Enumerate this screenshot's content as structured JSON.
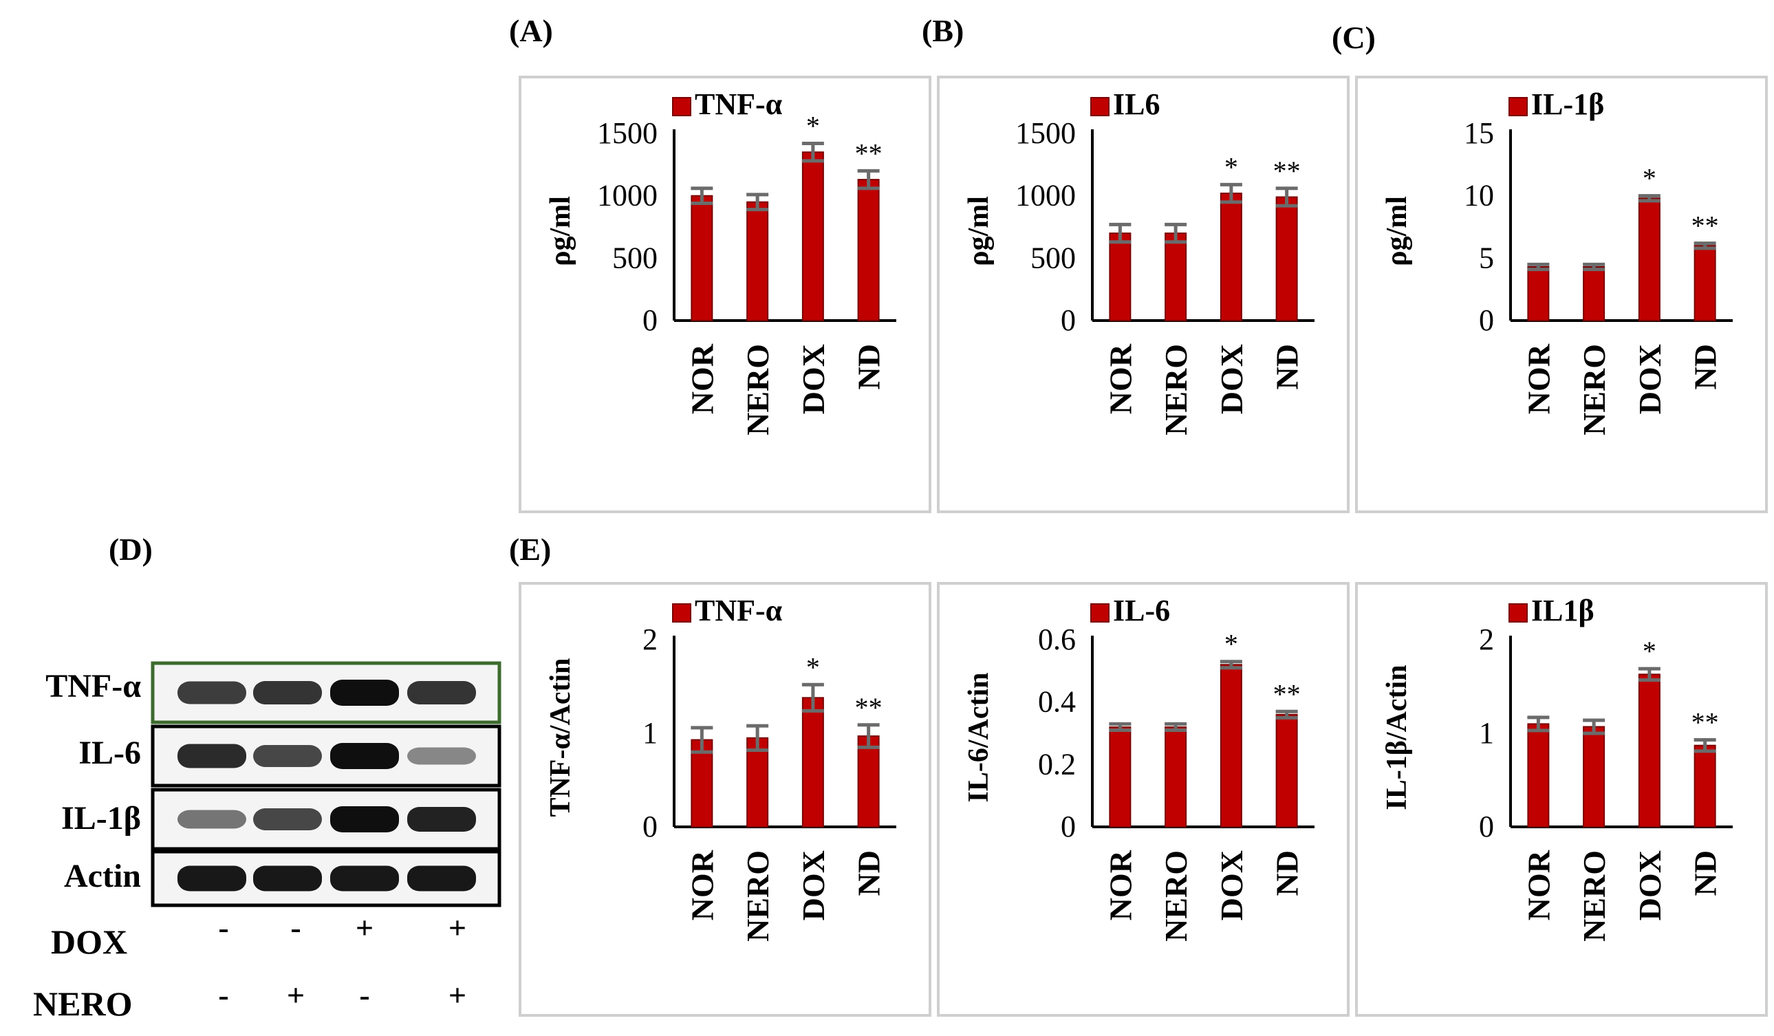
{
  "panel_labels": {
    "A": "(A)",
    "B": "(B)",
    "C": "(C)",
    "D": "(D)",
    "E": "(E)"
  },
  "colors": {
    "bar": "#c00000",
    "bar_edge": "#7a0000",
    "error": "#6b6b6b",
    "frame": "#cfcfcf",
    "blot_frame_green": "#3d6b2e"
  },
  "chart_data": [
    {
      "id": "A",
      "type": "bar",
      "legend": "TNF-α",
      "ylabel": "ρg/ml",
      "ylim": [
        0,
        1500
      ],
      "yticks": [
        "0",
        "500",
        "1000",
        "1500"
      ],
      "categories": [
        "NOR",
        "NERO",
        "DOX",
        "ND"
      ],
      "values": [
        1000,
        950,
        1350,
        1130
      ],
      "errors": [
        60,
        60,
        70,
        70
      ],
      "annotations": [
        "",
        "",
        "*",
        "**"
      ]
    },
    {
      "id": "B",
      "type": "bar",
      "legend": "IL6",
      "ylabel": "ρg/ml",
      "ylim": [
        0,
        1500
      ],
      "yticks": [
        "0",
        "500",
        "1000",
        "1500"
      ],
      "categories": [
        "NOR",
        "NERO",
        "DOX",
        "ND"
      ],
      "values": [
        700,
        700,
        1020,
        990
      ],
      "errors": [
        70,
        70,
        70,
        70
      ],
      "annotations": [
        "",
        "",
        "*",
        "**"
      ]
    },
    {
      "id": "C",
      "type": "bar",
      "legend": "IL-1β",
      "ylabel": "ρg/ml",
      "ylim": [
        0,
        15
      ],
      "yticks": [
        "0",
        "5",
        "10",
        "15"
      ],
      "categories": [
        "NOR",
        "NERO",
        "DOX",
        "ND"
      ],
      "values": [
        4.3,
        4.3,
        9.8,
        6
      ],
      "errors": [
        0.2,
        0.2,
        0.2,
        0.2
      ],
      "annotations": [
        "",
        "",
        "*",
        "**"
      ]
    },
    {
      "id": "E1",
      "type": "bar",
      "legend": "TNF-α",
      "ylabel": "TNF-α/Actin",
      "ylim": [
        0,
        2
      ],
      "yticks": [
        "0",
        "1",
        "2"
      ],
      "categories": [
        "NOR",
        "NERO",
        "DOX",
        "ND"
      ],
      "values": [
        0.93,
        0.95,
        1.38,
        0.97
      ],
      "errors": [
        0.13,
        0.13,
        0.14,
        0.12
      ],
      "annotations": [
        "",
        "",
        "*",
        "**"
      ]
    },
    {
      "id": "E2",
      "type": "bar",
      "legend": "IL-6",
      "ylabel": "IL-6/Actin",
      "ylim": [
        0,
        0.6
      ],
      "yticks": [
        "0",
        "0.2",
        "0.4",
        "0.6"
      ],
      "categories": [
        "NOR",
        "NERO",
        "DOX",
        "ND"
      ],
      "values": [
        0.32,
        0.32,
        0.52,
        0.36
      ],
      "errors": [
        0.01,
        0.01,
        0.01,
        0.01
      ],
      "annotations": [
        "",
        "",
        "*",
        "**"
      ]
    },
    {
      "id": "E3",
      "type": "bar",
      "legend": "IL1β",
      "ylabel": "IL-1β/Actin",
      "ylim": [
        0,
        2
      ],
      "yticks": [
        "0",
        "1",
        "2"
      ],
      "categories": [
        "NOR",
        "NERO",
        "DOX",
        "ND"
      ],
      "values": [
        1.1,
        1.07,
        1.63,
        0.87
      ],
      "errors": [
        0.07,
        0.07,
        0.06,
        0.06
      ],
      "annotations": [
        "",
        "",
        "*",
        "**"
      ]
    }
  ],
  "blot": {
    "bands": [
      {
        "label": "TNF-α",
        "intensity": [
          0.75,
          0.8,
          1.0,
          0.8
        ]
      },
      {
        "label": "IL-6",
        "intensity": [
          0.85,
          0.7,
          1.0,
          0.35
        ]
      },
      {
        "label": "IL-1β",
        "intensity": [
          0.45,
          0.7,
          1.0,
          0.9
        ]
      },
      {
        "label": "Actin",
        "intensity": [
          0.95,
          0.95,
          0.95,
          0.95
        ]
      }
    ],
    "conditions": [
      {
        "label": "DOX",
        "signs": [
          "-",
          "-",
          "+",
          "+"
        ]
      },
      {
        "label": "NERO",
        "signs": [
          "-",
          "+",
          "-",
          "+"
        ]
      }
    ]
  }
}
